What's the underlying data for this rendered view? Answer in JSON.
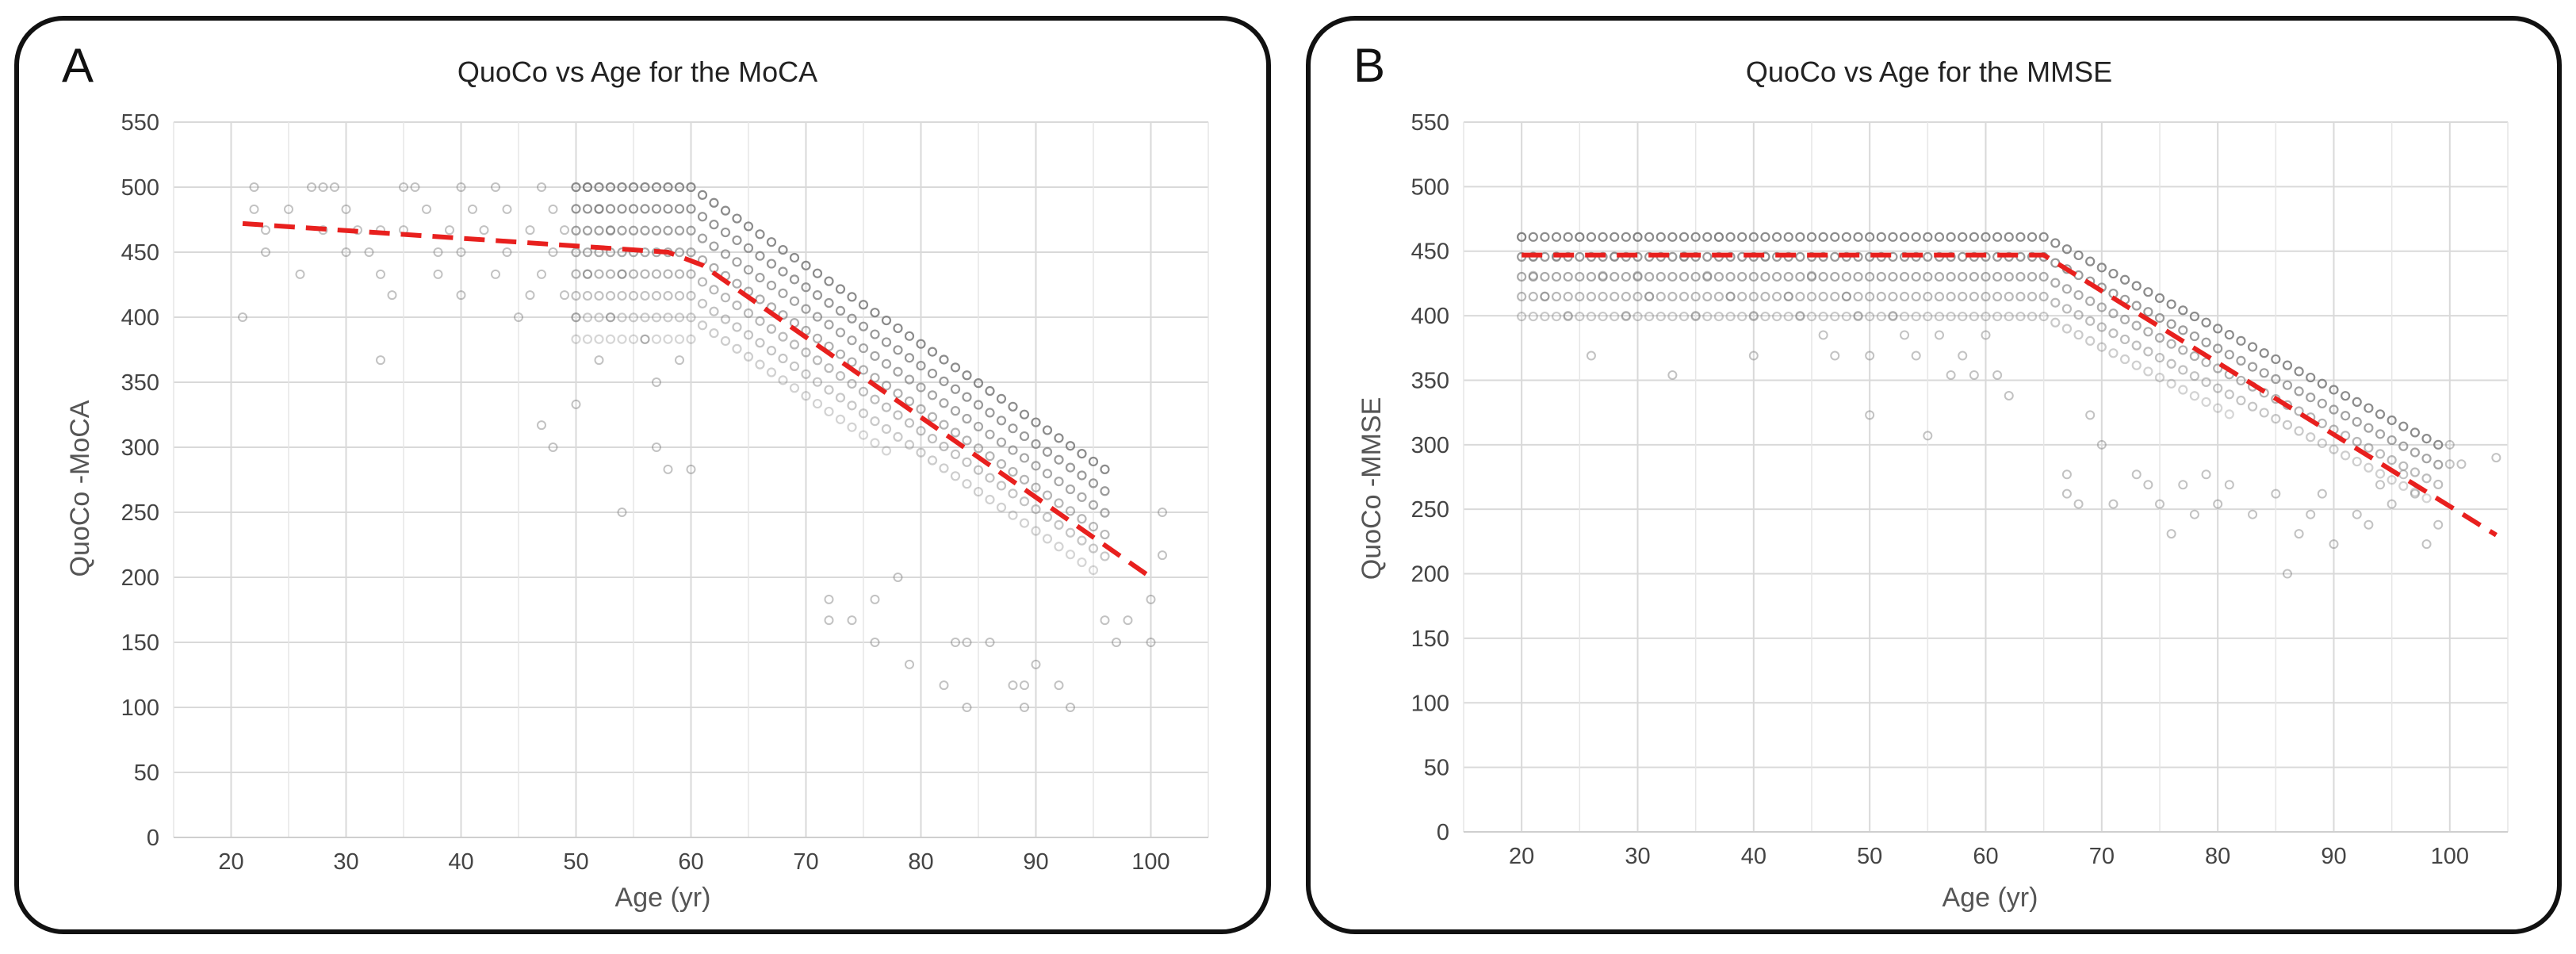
{
  "panels": [
    {
      "letter": "A"
    },
    {
      "letter": "B"
    }
  ],
  "chart_data": [
    {
      "type": "scatter",
      "title": "QuoCo vs Age for the MoCA",
      "xlabel": "Age (yr)",
      "ylabel": "QuoCo -MoCA",
      "xlim": [
        15,
        105
      ],
      "ylim": [
        0,
        550
      ],
      "xticks": [
        20,
        30,
        40,
        50,
        60,
        70,
        80,
        90,
        100
      ],
      "yticks": [
        0,
        50,
        100,
        150,
        200,
        250,
        300,
        350,
        400,
        450,
        500,
        550
      ],
      "grid": true,
      "series": [
        {
          "kind": "scatter",
          "color": "#777777",
          "points": [
            [
              21,
              400
            ],
            [
              22,
              500
            ],
            [
              22,
              483
            ],
            [
              23,
              467
            ],
            [
              23,
              450
            ],
            [
              25,
              483
            ],
            [
              26,
              433
            ],
            [
              27,
              500
            ],
            [
              28,
              500
            ],
            [
              28,
              467
            ],
            [
              29,
              500
            ],
            [
              30,
              483
            ],
            [
              30,
              450
            ],
            [
              31,
              467
            ],
            [
              32,
              450
            ],
            [
              33,
              467
            ],
            [
              33,
              433
            ],
            [
              33,
              367
            ],
            [
              34,
              417
            ],
            [
              35,
              500
            ],
            [
              35,
              467
            ],
            [
              36,
              500
            ],
            [
              37,
              483
            ],
            [
              38,
              450
            ],
            [
              38,
              433
            ],
            [
              39,
              467
            ],
            [
              40,
              500
            ],
            [
              40,
              450
            ],
            [
              40,
              417
            ],
            [
              41,
              483
            ],
            [
              42,
              467
            ],
            [
              43,
              500
            ],
            [
              43,
              433
            ],
            [
              44,
              483
            ],
            [
              44,
              450
            ],
            [
              45,
              400
            ],
            [
              46,
              467
            ],
            [
              46,
              417
            ],
            [
              47,
              500
            ],
            [
              47,
              433
            ],
            [
              47,
              317
            ],
            [
              48,
              483
            ],
            [
              48,
              450
            ],
            [
              48,
              300
            ],
            [
              49,
              467
            ],
            [
              49,
              417
            ],
            [
              50,
              400
            ],
            [
              50,
              333
            ],
            [
              51,
              500
            ],
            [
              51,
              433
            ],
            [
              52,
              483
            ],
            [
              52,
              367
            ],
            [
              53,
              467
            ],
            [
              53,
              400
            ],
            [
              54,
              433
            ],
            [
              54,
              250
            ],
            [
              56,
              383
            ],
            [
              57,
              350
            ],
            [
              57,
              300
            ],
            [
              58,
              283
            ],
            [
              59,
              367
            ],
            [
              60,
              283
            ],
            [
              72,
              183
            ],
            [
              72,
              167
            ],
            [
              74,
              167
            ],
            [
              76,
              183
            ],
            [
              76,
              150
            ],
            [
              78,
              200
            ],
            [
              79,
              133
            ],
            [
              82,
              117
            ],
            [
              83,
              150
            ],
            [
              84,
              150
            ],
            [
              84,
              100
            ],
            [
              86,
              150
            ],
            [
              88,
              117
            ],
            [
              89,
              117
            ],
            [
              89,
              100
            ],
            [
              90,
              133
            ],
            [
              92,
              117
            ],
            [
              93,
              100
            ],
            [
              96,
              167
            ],
            [
              97,
              150
            ],
            [
              98,
              167
            ],
            [
              100,
              183
            ],
            [
              100,
              150
            ],
            [
              101,
              250
            ],
            [
              101,
              217
            ]
          ],
          "band": {
            "x_start": 50,
            "x_knee": 60,
            "x_end": 96,
            "y_upper_at_knee": 500,
            "y_upper_at_end": 283,
            "y_lower_at_knee": 383,
            "y_lower_at_end": 200,
            "x_step": 1,
            "y_step": 16.7
          }
        },
        {
          "kind": "trend",
          "color": "#e8201e",
          "style": "dashed",
          "points": [
            [
              21,
              472
            ],
            [
              58,
              450
            ],
            [
              61,
              440
            ],
            [
              100,
              200
            ]
          ]
        }
      ]
    },
    {
      "type": "scatter",
      "title": "QuoCo vs Age for the MMSE",
      "xlabel": "Age (yr)",
      "ylabel": "QuoCo -MMSE",
      "xlim": [
        15,
        105
      ],
      "ylim": [
        0,
        550
      ],
      "xticks": [
        20,
        30,
        40,
        50,
        60,
        70,
        80,
        90,
        100
      ],
      "yticks": [
        0,
        50,
        100,
        150,
        200,
        250,
        300,
        350,
        400,
        450,
        500,
        550
      ],
      "grid": true,
      "series": [
        {
          "kind": "scatter",
          "color": "#777777",
          "points": [
            [
              20,
              461
            ],
            [
              21,
              446
            ],
            [
              21,
              431
            ],
            [
              22,
              415
            ],
            [
              23,
              446
            ],
            [
              24,
              400
            ],
            [
              25,
              461
            ],
            [
              26,
              369
            ],
            [
              27,
              431
            ],
            [
              28,
              446
            ],
            [
              29,
              400
            ],
            [
              30,
              461
            ],
            [
              30,
              431
            ],
            [
              31,
              415
            ],
            [
              33,
              354
            ],
            [
              34,
              446
            ],
            [
              35,
              400
            ],
            [
              36,
              431
            ],
            [
              37,
              461
            ],
            [
              38,
              415
            ],
            [
              40,
              400
            ],
            [
              40,
              369
            ],
            [
              41,
              446
            ],
            [
              43,
              415
            ],
            [
              44,
              400
            ],
            [
              45,
              431
            ],
            [
              46,
              385
            ],
            [
              47,
              369
            ],
            [
              48,
              415
            ],
            [
              49,
              400
            ],
            [
              50,
              369
            ],
            [
              50,
              323
            ],
            [
              52,
              400
            ],
            [
              53,
              385
            ],
            [
              54,
              369
            ],
            [
              55,
              307
            ],
            [
              56,
              385
            ],
            [
              57,
              354
            ],
            [
              58,
              369
            ],
            [
              59,
              354
            ],
            [
              60,
              385
            ],
            [
              61,
              354
            ],
            [
              62,
              338
            ],
            [
              67,
              277
            ],
            [
              67,
              262
            ],
            [
              68,
              254
            ],
            [
              69,
              323
            ],
            [
              70,
              300
            ],
            [
              71,
              254
            ],
            [
              73,
              277
            ],
            [
              74,
              269
            ],
            [
              75,
              254
            ],
            [
              76,
              231
            ],
            [
              77,
              269
            ],
            [
              78,
              246
            ],
            [
              79,
              277
            ],
            [
              80,
              254
            ],
            [
              81,
              269
            ],
            [
              83,
              246
            ],
            [
              85,
              262
            ],
            [
              86,
              200
            ],
            [
              87,
              231
            ],
            [
              88,
              246
            ],
            [
              89,
              262
            ],
            [
              90,
              223
            ],
            [
              92,
              246
            ],
            [
              93,
              238
            ],
            [
              94,
              269
            ],
            [
              95,
              254
            ],
            [
              96,
              277
            ],
            [
              97,
              262
            ],
            [
              98,
              223
            ],
            [
              99,
              238
            ],
            [
              100,
              300
            ],
            [
              100,
              285
            ],
            [
              101,
              285
            ],
            [
              104,
              290
            ]
          ],
          "band": {
            "x_start": 20,
            "x_knee": 65,
            "x_end": 99,
            "y_upper_at_knee": 461,
            "y_upper_at_end": 300,
            "y_lower_at_knee": 385,
            "y_lower_at_end": 254,
            "x_step": 1,
            "y_step": 15.4
          }
        },
        {
          "kind": "trend",
          "color": "#e8201e",
          "style": "dashed",
          "points": [
            [
              20,
              447
            ],
            [
              65,
              447
            ],
            [
              104,
              230
            ]
          ]
        }
      ]
    }
  ]
}
